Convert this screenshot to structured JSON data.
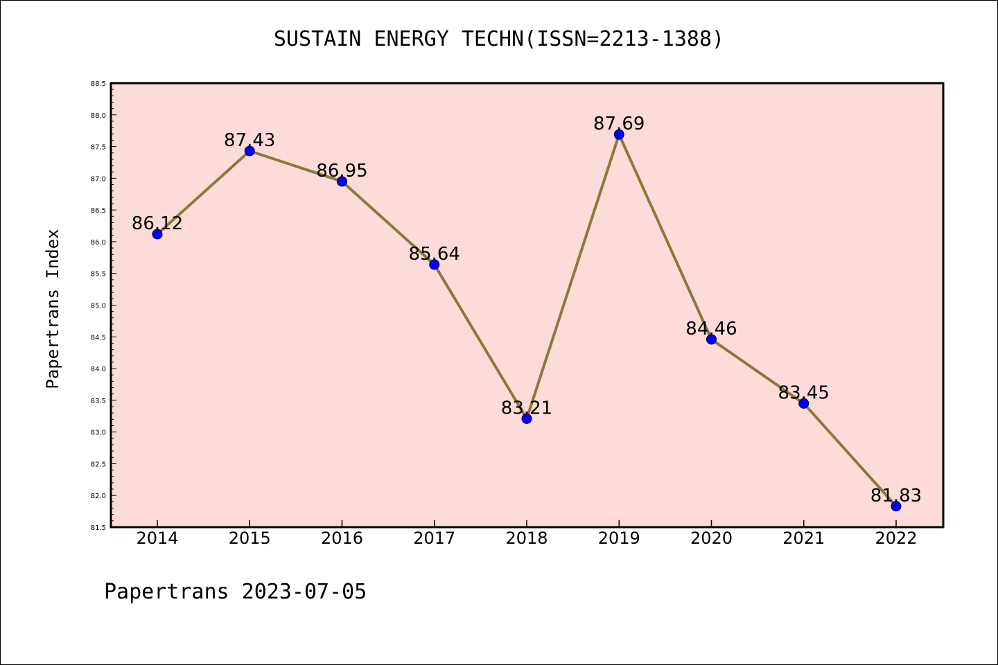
{
  "footer": "Papertrans 2023-07-05",
  "colors": {
    "plot_background": "#fddbd8",
    "line": "#8b7a3c",
    "marker": "#0000ff",
    "axis": "#000000"
  },
  "chart_data": {
    "type": "line",
    "title": "SUSTAIN ENERGY TECHN(ISSN=2213-1388)",
    "xlabel": "",
    "ylabel": "Papertrans Index",
    "categories": [
      "2014",
      "2015",
      "2016",
      "2017",
      "2018",
      "2019",
      "2020",
      "2021",
      "2022"
    ],
    "values": [
      86.12,
      87.43,
      86.95,
      85.64,
      83.21,
      87.69,
      84.46,
      83.45,
      81.83
    ],
    "data_labels": [
      "86.12",
      "87.43",
      "86.95",
      "85.64",
      "83.21",
      "87.69",
      "84.46",
      "83.45",
      "81.83"
    ],
    "ylim": [
      81.5,
      88.5
    ],
    "yticks": [
      "81.5",
      "82.0",
      "82.5",
      "83.0",
      "83.5",
      "84.0",
      "84.5",
      "85.0",
      "85.5",
      "86.0",
      "86.5",
      "87.0",
      "87.5",
      "88.0",
      "88.5"
    ],
    "grid": false,
    "legend": "none",
    "marker": "circle"
  }
}
